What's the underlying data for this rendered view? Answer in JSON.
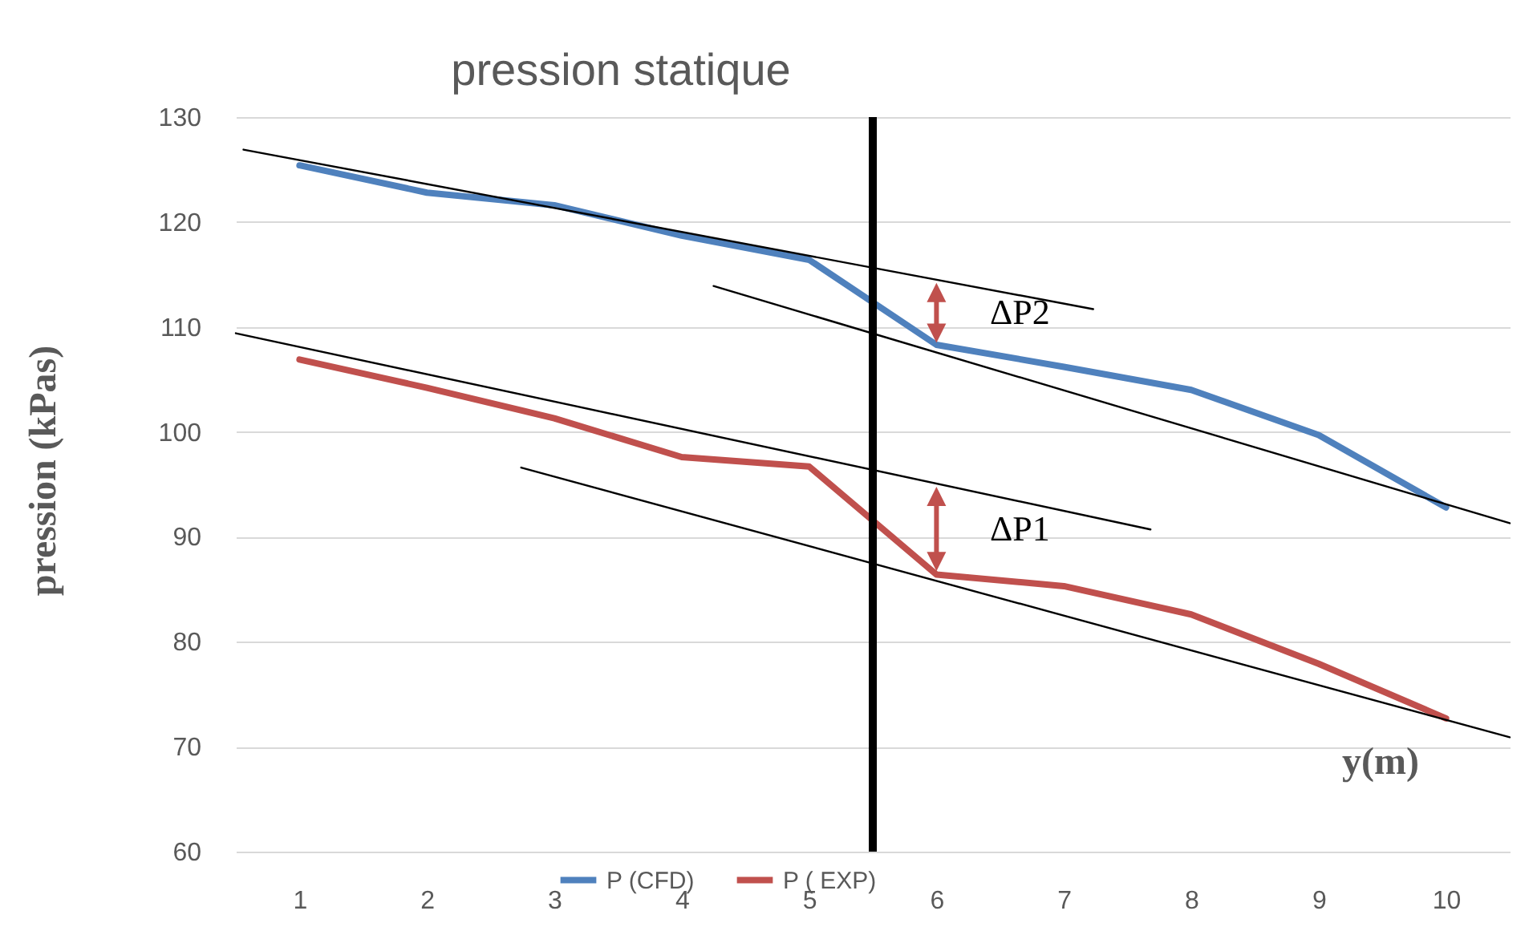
{
  "chart_data": {
    "type": "line",
    "title": "pression statique",
    "xlabel": "y(m)",
    "ylabel": "pression (kPas)",
    "xlim": [
      0.5,
      10.5
    ],
    "xticks": [
      1,
      2,
      3,
      4,
      5,
      6,
      7,
      8,
      9,
      10
    ],
    "ylim": [
      60,
      130
    ],
    "yticks": [
      60,
      70,
      80,
      90,
      100,
      110,
      120,
      130
    ],
    "grid": "y",
    "legend": "bottom",
    "marker": "none",
    "x": [
      1,
      2,
      3,
      4,
      5,
      6,
      7,
      8,
      9,
      10
    ],
    "series": [
      {
        "name": "P (CFD)",
        "color": "#4f81bd",
        "values": [
          125.4,
          122.8,
          121.6,
          118.7,
          116.4,
          108.3,
          106.2,
          104.0,
          99.7,
          92.8
        ]
      },
      {
        "name": "P ( EXP)",
        "color": "#c0504d",
        "values": [
          106.9,
          104.2,
          101.3,
          97.6,
          96.7,
          86.4,
          85.3,
          82.6,
          77.9,
          72.7
        ]
      },
      {
        "type": "line",
        "color": "#000000",
        "x": [
          0.56,
          7.23
        ],
        "values": [
          126.9,
          111.7
        ]
      },
      {
        "type": "line",
        "color": "#000000",
        "x": [
          4.25,
          10.5
        ],
        "values": [
          113.9,
          91.3
        ]
      },
      {
        "type": "line",
        "color": "#000000",
        "x": [
          0.5,
          7.68
        ],
        "values": [
          109.4,
          90.7
        ]
      },
      {
        "type": "line",
        "color": "#000000",
        "x": [
          2.74,
          10.5
        ],
        "values": [
          96.6,
          70.9
        ]
      }
    ],
    "ref_lines": [
      {
        "axis": "x",
        "value": 5.5,
        "color": "#000000"
      }
    ],
    "annotations": [
      "ΔP2",
      "ΔP1"
    ]
  }
}
